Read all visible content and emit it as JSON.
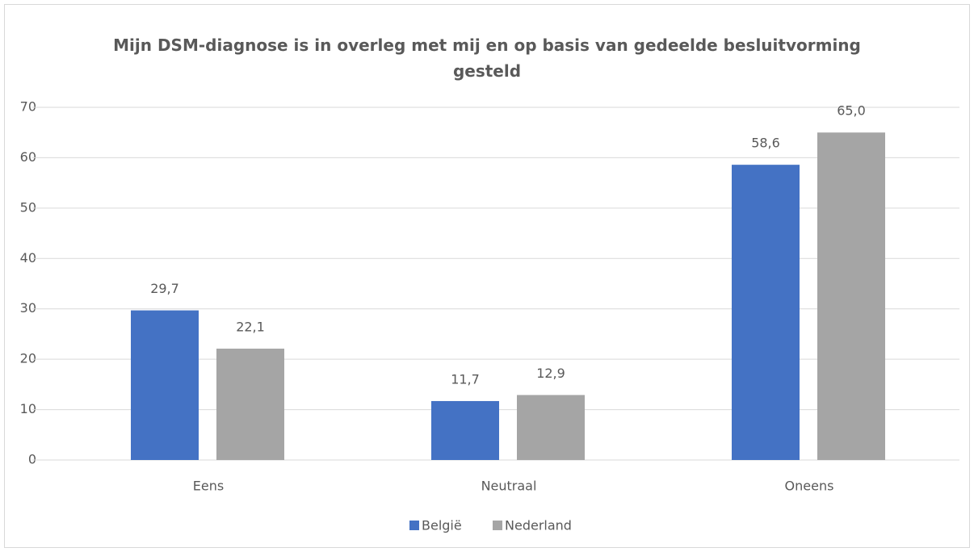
{
  "chart_data": {
    "type": "bar",
    "title": "Mijn DSM-diagnose is in overleg met mij en op basis van gedeelde besluitvorming gesteld",
    "categories": [
      "Eens",
      "Neutraal",
      "Oneens"
    ],
    "series": [
      {
        "name": "België",
        "color": "#4472c4",
        "values": [
          29.7,
          11.7,
          58.6
        ],
        "value_labels": [
          "29,7",
          "11,7",
          "58,6"
        ]
      },
      {
        "name": "Nederland",
        "color": "#a5a5a5",
        "values": [
          22.1,
          12.9,
          65.0
        ],
        "value_labels": [
          "22,1",
          "12,9",
          "65,0"
        ]
      }
    ],
    "ylim": [
      0,
      70
    ],
    "yticks": [
      0,
      10,
      20,
      30,
      40,
      50,
      60,
      70
    ],
    "grid": true,
    "legend": "bottom"
  }
}
